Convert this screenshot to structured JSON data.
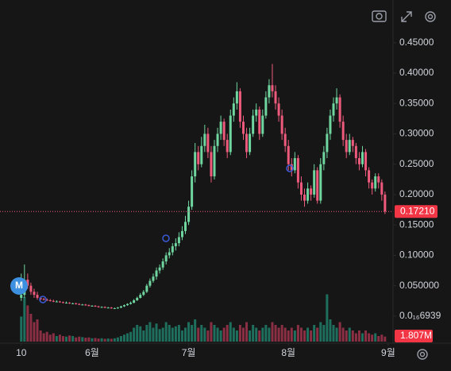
{
  "chart_data": {
    "type": "candlestick",
    "xlim": [
      -6.6,
      115.5
    ],
    "xticks": [
      {
        "value": 0,
        "label": "10"
      },
      {
        "value": 22,
        "label": "6월"
      },
      {
        "value": 52,
        "label": "7월"
      },
      {
        "value": 83,
        "label": "8월"
      },
      {
        "value": 114,
        "label": "9월"
      }
    ],
    "ylim": [
      -0.042,
      0.468
    ],
    "yticks": [
      {
        "value": 0.45,
        "label": "0.45000"
      },
      {
        "value": 0.4,
        "label": "0.40000"
      },
      {
        "value": 0.35,
        "label": "0.35000"
      },
      {
        "value": 0.3,
        "label": "0.30000"
      },
      {
        "value": 0.25,
        "label": "0.25000"
      },
      {
        "value": 0.2,
        "label": "0.20000"
      },
      {
        "value": 0.15,
        "label": "0.15000"
      },
      {
        "value": 0.1,
        "label": "0.10000"
      },
      {
        "value": 0.05,
        "label": "0.050000"
      },
      {
        "value": 6.939e-18,
        "label": "0.0₁₆6939"
      }
    ],
    "up_color": "#6fd6a0",
    "down_color": "#ee5a7c",
    "volume_up_color": "#1f6f5e",
    "volume_down_color": "#8a2f44",
    "volume_lim": [
      0,
      20000000
    ],
    "last_price_label": "0.17210",
    "last_volume_label": "1.807M",
    "ohlc": [
      [
        0.03,
        0.07,
        0.025,
        0.035
      ],
      [
        0.035,
        0.085,
        0.03,
        0.06
      ],
      [
        0.06,
        0.07,
        0.045,
        0.05
      ],
      [
        0.05,
        0.055,
        0.035,
        0.04
      ],
      [
        0.04,
        0.045,
        0.03,
        0.035
      ],
      [
        0.035,
        0.04,
        0.027,
        0.03
      ],
      [
        0.03,
        0.032,
        0.026,
        0.028
      ],
      [
        0.028,
        0.03,
        0.026,
        0.027
      ],
      [
        0.027,
        0.029,
        0.025,
        0.026
      ],
      [
        0.026,
        0.028,
        0.024,
        0.025
      ],
      [
        0.025,
        0.027,
        0.023,
        0.024
      ],
      [
        0.024,
        0.026,
        0.023,
        0.024
      ],
      [
        0.024,
        0.025,
        0.022,
        0.023
      ],
      [
        0.023,
        0.024,
        0.021,
        0.022
      ],
      [
        0.022,
        0.024,
        0.021,
        0.022
      ],
      [
        0.022,
        0.023,
        0.02,
        0.021
      ],
      [
        0.021,
        0.022,
        0.02,
        0.021
      ],
      [
        0.021,
        0.022,
        0.019,
        0.02
      ],
      [
        0.02,
        0.021,
        0.018,
        0.019
      ],
      [
        0.019,
        0.02,
        0.018,
        0.019
      ],
      [
        0.019,
        0.02,
        0.017,
        0.018
      ],
      [
        0.018,
        0.019,
        0.016,
        0.017
      ],
      [
        0.017,
        0.018,
        0.016,
        0.017
      ],
      [
        0.017,
        0.018,
        0.015,
        0.016
      ],
      [
        0.016,
        0.017,
        0.014,
        0.015
      ],
      [
        0.015,
        0.016,
        0.014,
        0.015
      ],
      [
        0.015,
        0.016,
        0.013,
        0.014
      ],
      [
        0.014,
        0.015,
        0.013,
        0.014
      ],
      [
        0.014,
        0.015,
        0.012,
        0.013
      ],
      [
        0.013,
        0.014,
        0.012,
        0.013
      ],
      [
        0.013,
        0.015,
        0.012,
        0.014
      ],
      [
        0.014,
        0.017,
        0.013,
        0.016
      ],
      [
        0.016,
        0.019,
        0.015,
        0.018
      ],
      [
        0.018,
        0.021,
        0.017,
        0.02
      ],
      [
        0.02,
        0.024,
        0.019,
        0.022
      ],
      [
        0.022,
        0.028,
        0.021,
        0.026
      ],
      [
        0.026,
        0.032,
        0.025,
        0.03
      ],
      [
        0.03,
        0.038,
        0.029,
        0.035
      ],
      [
        0.035,
        0.043,
        0.033,
        0.04
      ],
      [
        0.04,
        0.053,
        0.038,
        0.05
      ],
      [
        0.05,
        0.062,
        0.047,
        0.058
      ],
      [
        0.058,
        0.07,
        0.055,
        0.065
      ],
      [
        0.065,
        0.08,
        0.06,
        0.075
      ],
      [
        0.075,
        0.085,
        0.07,
        0.08
      ],
      [
        0.08,
        0.095,
        0.076,
        0.09
      ],
      [
        0.09,
        0.105,
        0.085,
        0.1
      ],
      [
        0.1,
        0.112,
        0.095,
        0.105
      ],
      [
        0.105,
        0.12,
        0.1,
        0.115
      ],
      [
        0.115,
        0.128,
        0.108,
        0.12
      ],
      [
        0.12,
        0.138,
        0.115,
        0.13
      ],
      [
        0.13,
        0.148,
        0.125,
        0.14
      ],
      [
        0.14,
        0.165,
        0.135,
        0.155
      ],
      [
        0.155,
        0.19,
        0.15,
        0.18
      ],
      [
        0.18,
        0.24,
        0.175,
        0.23
      ],
      [
        0.23,
        0.285,
        0.22,
        0.27
      ],
      [
        0.27,
        0.28,
        0.24,
        0.25
      ],
      [
        0.25,
        0.295,
        0.245,
        0.28
      ],
      [
        0.28,
        0.315,
        0.27,
        0.3
      ],
      [
        0.3,
        0.31,
        0.26,
        0.27
      ],
      [
        0.27,
        0.28,
        0.22,
        0.23
      ],
      [
        0.23,
        0.29,
        0.225,
        0.28
      ],
      [
        0.28,
        0.31,
        0.27,
        0.3
      ],
      [
        0.3,
        0.33,
        0.29,
        0.32
      ],
      [
        0.32,
        0.325,
        0.28,
        0.29
      ],
      [
        0.29,
        0.3,
        0.26,
        0.27
      ],
      [
        0.27,
        0.34,
        0.265,
        0.33
      ],
      [
        0.33,
        0.36,
        0.32,
        0.35
      ],
      [
        0.35,
        0.385,
        0.34,
        0.37
      ],
      [
        0.37,
        0.375,
        0.31,
        0.32
      ],
      [
        0.32,
        0.33,
        0.29,
        0.3
      ],
      [
        0.3,
        0.31,
        0.26,
        0.27
      ],
      [
        0.27,
        0.31,
        0.265,
        0.3
      ],
      [
        0.3,
        0.34,
        0.295,
        0.33
      ],
      [
        0.33,
        0.35,
        0.32,
        0.34
      ],
      [
        0.34,
        0.345,
        0.29,
        0.3
      ],
      [
        0.3,
        0.34,
        0.295,
        0.33
      ],
      [
        0.33,
        0.37,
        0.325,
        0.36
      ],
      [
        0.36,
        0.39,
        0.35,
        0.38
      ],
      [
        0.38,
        0.415,
        0.36,
        0.37
      ],
      [
        0.37,
        0.38,
        0.34,
        0.35
      ],
      [
        0.35,
        0.36,
        0.32,
        0.33
      ],
      [
        0.33,
        0.34,
        0.29,
        0.3
      ],
      [
        0.3,
        0.31,
        0.27,
        0.28
      ],
      [
        0.28,
        0.29,
        0.24,
        0.25
      ],
      [
        0.25,
        0.26,
        0.23,
        0.24
      ],
      [
        0.24,
        0.27,
        0.235,
        0.26
      ],
      [
        0.26,
        0.265,
        0.21,
        0.22
      ],
      [
        0.22,
        0.23,
        0.19,
        0.2
      ],
      [
        0.2,
        0.21,
        0.18,
        0.19
      ],
      [
        0.19,
        0.22,
        0.185,
        0.21
      ],
      [
        0.21,
        0.215,
        0.19,
        0.2
      ],
      [
        0.2,
        0.25,
        0.195,
        0.24
      ],
      [
        0.24,
        0.245,
        0.185,
        0.19
      ],
      [
        0.19,
        0.26,
        0.185,
        0.25
      ],
      [
        0.25,
        0.28,
        0.24,
        0.27
      ],
      [
        0.27,
        0.31,
        0.26,
        0.3
      ],
      [
        0.3,
        0.34,
        0.29,
        0.33
      ],
      [
        0.33,
        0.36,
        0.32,
        0.35
      ],
      [
        0.35,
        0.375,
        0.34,
        0.36
      ],
      [
        0.36,
        0.365,
        0.31,
        0.32
      ],
      [
        0.32,
        0.33,
        0.28,
        0.29
      ],
      [
        0.29,
        0.3,
        0.26,
        0.27
      ],
      [
        0.27,
        0.3,
        0.265,
        0.29
      ],
      [
        0.29,
        0.295,
        0.27,
        0.28
      ],
      [
        0.28,
        0.285,
        0.25,
        0.26
      ],
      [
        0.26,
        0.27,
        0.24,
        0.25
      ],
      [
        0.25,
        0.28,
        0.245,
        0.27
      ],
      [
        0.27,
        0.275,
        0.23,
        0.24
      ],
      [
        0.24,
        0.245,
        0.21,
        0.22
      ],
      [
        0.22,
        0.225,
        0.2,
        0.21
      ],
      [
        0.21,
        0.235,
        0.205,
        0.23
      ],
      [
        0.23,
        0.235,
        0.21,
        0.22
      ],
      [
        0.22,
        0.225,
        0.19,
        0.2
      ],
      [
        0.2,
        0.205,
        0.168,
        0.1721
      ]
    ],
    "volume": [
      9000000.0,
      16000000.0,
      13000000.0,
      10000000.0,
      7000000.0,
      8000000.0,
      4000000.0,
      3000000.0,
      3500000.0,
      2500000.0,
      3000000.0,
      2000000.0,
      2500000.0,
      2000000.0,
      1800000.0,
      2200000.0,
      2000000.0,
      1500000.0,
      1800000.0,
      1600000.0,
      1400000.0,
      1500000.0,
      1200000.0,
      1300000.0,
      1100000.0,
      1200000.0,
      1000000.0,
      1100000.0,
      1000000.0,
      1200000.0,
      1500000.0,
      2000000.0,
      2500000.0,
      3000000.0,
      3500000.0,
      5000000.0,
      6000000.0,
      5500000.0,
      4000000.0,
      6000000.0,
      7000000.0,
      5000000.0,
      6500000.0,
      4500000.0,
      5000000.0,
      7000000.0,
      6000000.0,
      5000000.0,
      5500000.0,
      6000000.0,
      4000000.0,
      5000000.0,
      7000000.0,
      6000000.0,
      8000000.0,
      5000000.0,
      6000000.0,
      5000000.0,
      4000000.0,
      7000000.0,
      6000000.0,
      5000000.0,
      4000000.0,
      5000000.0,
      6000000.0,
      7000000.0,
      5000000.0,
      4000000.0,
      6000000.0,
      5000000.0,
      7000000.0,
      4000000.0,
      6000000.0,
      5000000.0,
      4000000.0,
      5000000.0,
      6000000.0,
      5000000.0,
      7000000.0,
      6000000.0,
      5000000.0,
      6000000.0,
      5000000.0,
      4000000.0,
      5000000.0,
      4000000.0,
      6000000.0,
      5000000.0,
      4000000.0,
      5000000.0,
      4000000.0,
      6000000.0,
      5000000.0,
      7000000.0,
      6000000.0,
      17000000.0,
      8000000.0,
      6000000.0,
      5000000.0,
      7000000.0,
      5000000.0,
      4000000.0,
      5000000.0,
      4000000.0,
      3000000.0,
      4000000.0,
      3000000.0,
      4000000.0,
      3000000.0,
      2500000.0,
      3000000.0,
      2000000.0,
      2500000.0,
      1807000
    ]
  }
}
